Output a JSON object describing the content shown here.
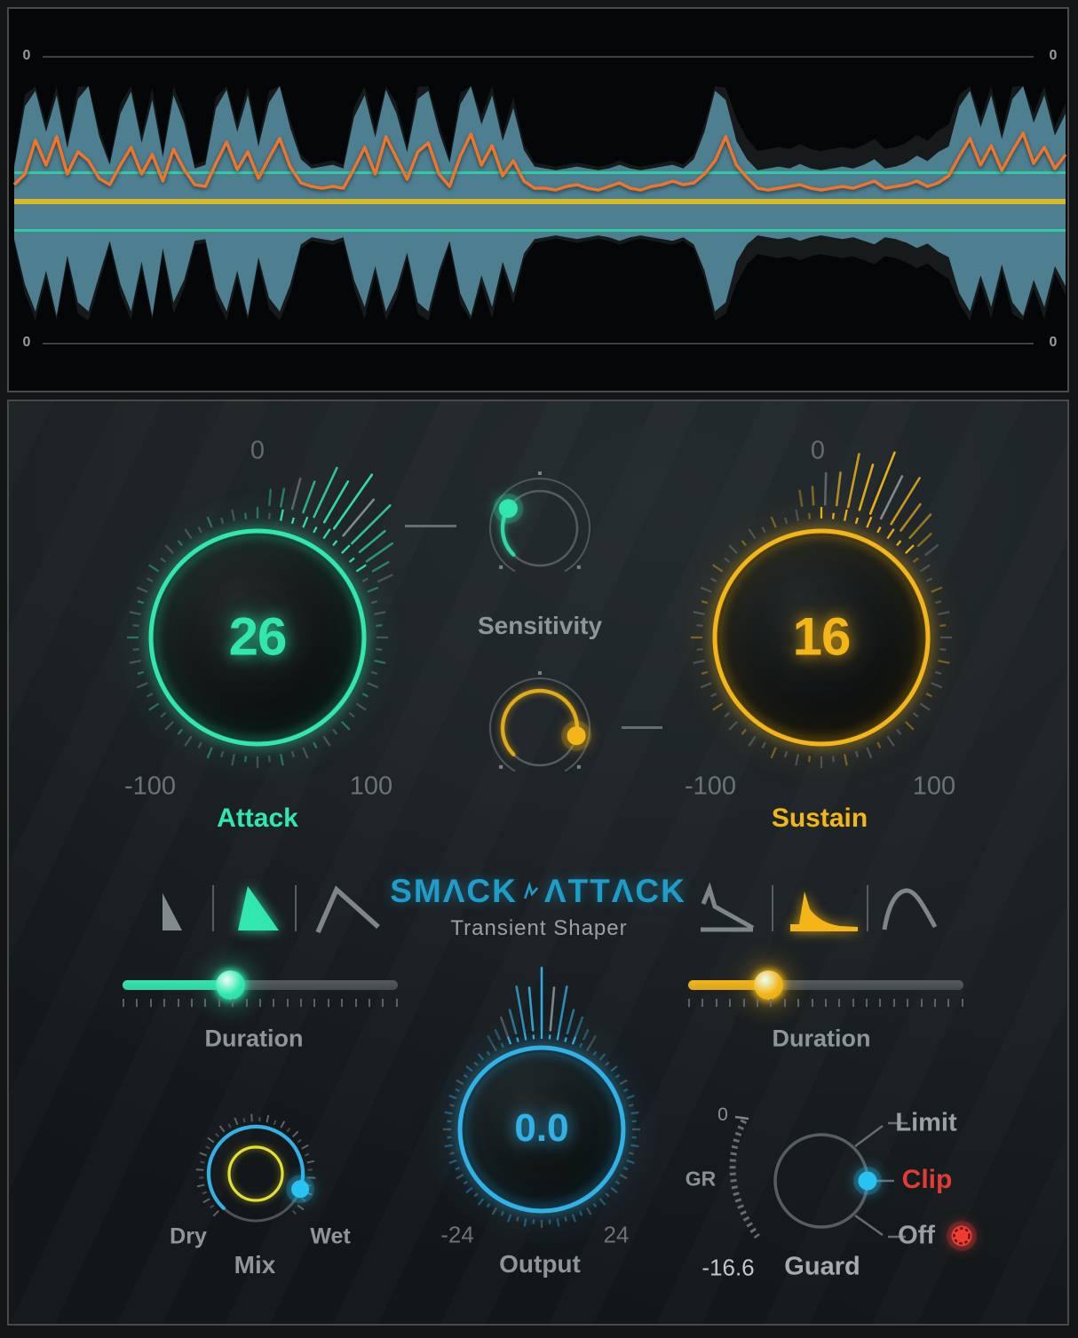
{
  "waveform": {
    "zero": "0",
    "upper": [
      0.12,
      0.78,
      0.95,
      0.5,
      0.9,
      0.32,
      0.86,
      1.0,
      0.45,
      0.14,
      0.7,
      0.94,
      0.38,
      0.85,
      0.22,
      0.9,
      0.6,
      0.1,
      0.14,
      0.76,
      0.96,
      0.5,
      0.9,
      0.34,
      0.82,
      1.0,
      0.54,
      0.2,
      0.1,
      0.12,
      0.14,
      0.1,
      0.66,
      0.9,
      0.44,
      0.96,
      0.7,
      0.28,
      0.86,
      0.95,
      0.5,
      0.16,
      0.8,
      1.0,
      0.58,
      0.9,
      0.4,
      0.76,
      0.3,
      0.12,
      0.1,
      0.08,
      0.1,
      0.12,
      0.1,
      0.08,
      0.1,
      0.14,
      0.1,
      0.08,
      0.1,
      0.12,
      0.14,
      0.1,
      0.2,
      0.5,
      0.95,
      0.85,
      0.4,
      0.2,
      0.08,
      0.1,
      0.12,
      0.1,
      0.15,
      0.1,
      0.08,
      0.1,
      0.12,
      0.1,
      0.14,
      0.2,
      0.1,
      0.12,
      0.16,
      0.24,
      0.18,
      0.28,
      0.34,
      0.78,
      0.95,
      0.55,
      0.9,
      0.42,
      0.86,
      1.0,
      0.6,
      0.9,
      0.46,
      0.7
    ],
    "lower": [
      0.1,
      0.6,
      0.9,
      0.45,
      0.95,
      0.28,
      0.8,
      0.9,
      0.5,
      0.12,
      0.6,
      0.9,
      0.35,
      0.95,
      0.2,
      0.8,
      0.55,
      0.12,
      0.1,
      0.65,
      0.9,
      0.45,
      0.95,
      0.3,
      0.75,
      0.9,
      0.6,
      0.16,
      0.08,
      0.1,
      0.12,
      0.08,
      0.55,
      0.85,
      0.4,
      0.9,
      0.65,
      0.25,
      0.8,
      0.9,
      0.45,
      0.12,
      0.7,
      0.95,
      0.5,
      0.85,
      0.35,
      0.7,
      0.26,
      0.1,
      0.08,
      0.06,
      0.08,
      0.1,
      0.08,
      0.06,
      0.08,
      0.12,
      0.08,
      0.06,
      0.08,
      0.1,
      0.12,
      0.08,
      0.16,
      0.45,
      0.9,
      0.8,
      0.35,
      0.16,
      0.06,
      0.08,
      0.1,
      0.08,
      0.12,
      0.08,
      0.06,
      0.08,
      0.1,
      0.08,
      0.12,
      0.16,
      0.08,
      0.1,
      0.14,
      0.2,
      0.15,
      0.24,
      0.3,
      0.7,
      0.9,
      0.5,
      0.85,
      0.38,
      0.8,
      0.95,
      0.55,
      0.85,
      0.4,
      0.62
    ],
    "orange": [
      18,
      30,
      68,
      40,
      72,
      30,
      55,
      45,
      25,
      18,
      40,
      60,
      30,
      52,
      22,
      58,
      35,
      18,
      16,
      42,
      66,
      35,
      55,
      25,
      48,
      70,
      38,
      20,
      16,
      14,
      16,
      14,
      36,
      60,
      30,
      72,
      48,
      24,
      55,
      65,
      30,
      16,
      50,
      75,
      40,
      62,
      28,
      45,
      22,
      14,
      14,
      12,
      16,
      18,
      14,
      12,
      16,
      20,
      14,
      12,
      16,
      18,
      22,
      18,
      20,
      30,
      45,
      72,
      40,
      26,
      14,
      12,
      14,
      16,
      18,
      14,
      12,
      14,
      16,
      14,
      18,
      22,
      14,
      16,
      18,
      22,
      16,
      20,
      28,
      50,
      70,
      40,
      62,
      34,
      56,
      76,
      42,
      60,
      36,
      52
    ]
  },
  "attack_knob": {
    "zero": "0",
    "value": "26",
    "min": "-100",
    "max": "100",
    "label": "Attack"
  },
  "sustain_knob": {
    "zero": "0",
    "value": "16",
    "min": "-100",
    "max": "100",
    "label": "Sustain"
  },
  "sensitivity": {
    "label": "Sensitivity",
    "attack_pos_deg": -58,
    "sustain_pos_deg": 102
  },
  "logo": {
    "part1": "SMΛCK",
    "part2": "ΛTTΛCK",
    "subtitle": "Transient Shaper"
  },
  "attack_shapes": {
    "selected": 2
  },
  "sustain_shapes": {
    "selected": 2
  },
  "attack_duration": {
    "label": "Duration",
    "fraction": 0.39
  },
  "sustain_duration": {
    "label": "Duration",
    "fraction": 0.29
  },
  "mix_knob": {
    "label": "Mix",
    "dry": "Dry",
    "wet": "Wet",
    "position_deg": 109
  },
  "output_knob": {
    "value": "0.0",
    "min": "-24",
    "max": "24",
    "label": "Output"
  },
  "guard": {
    "gr": "GR",
    "gr_zero": "0",
    "gr_value": "-16.6",
    "limit": "Limit",
    "clip": "Clip",
    "off": "Off",
    "label": "Guard",
    "selected": "Clip"
  },
  "colors": {
    "attack": "#31e7ae",
    "sustain": "#f3b517",
    "output": "#31b1e6",
    "blue_dot": "#29c3f2",
    "mix_yellow": "#e6df2e",
    "logo": "#1f9dca",
    "clip": "#e23c35",
    "led": "#ef3d35",
    "wave_fill": "#4d7f91",
    "wave_line_teal": "#2fd0a4",
    "wave_line_yellow": "#d8ba29",
    "wave_orange": "#f0752b"
  }
}
